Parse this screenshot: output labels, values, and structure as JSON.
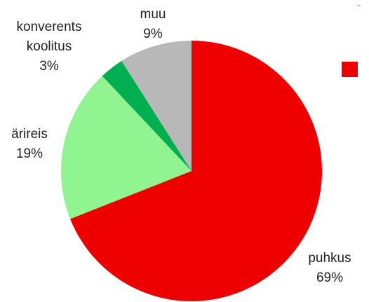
{
  "chart_data": {
    "type": "pie",
    "categories": [
      "puhkus",
      "ärireis",
      "konverents koolitus",
      "muu"
    ],
    "values": [
      69,
      19,
      3,
      9
    ],
    "value_labels": [
      "69%",
      "19%",
      "3%",
      "9%"
    ],
    "colors": [
      "#ee0000",
      "#90f590",
      "#00b050",
      "#b8b8b8"
    ]
  }
}
